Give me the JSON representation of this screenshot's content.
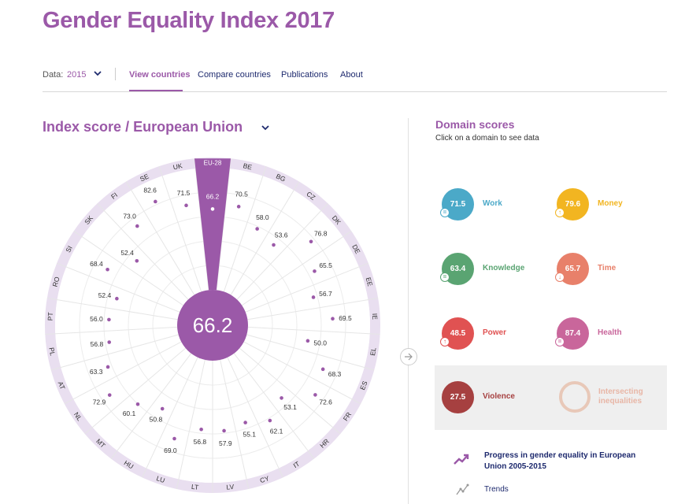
{
  "header": {
    "title": "Gender Equality Index 2017"
  },
  "nav": {
    "data_label": "Data:",
    "data_value": "2015",
    "links": [
      "View countries",
      "Compare countries",
      "Publications",
      "About"
    ]
  },
  "index": {
    "label": "Index score",
    "separator": "/",
    "region": "European Union"
  },
  "chart_data": {
    "type": "radial-bar",
    "title": "Index score / European Union",
    "highlight": "EU-28",
    "center_value": "66.2",
    "categories": [
      "EU-28",
      "BE",
      "BG",
      "CZ",
      "DK",
      "DE",
      "EE",
      "IE",
      "EL",
      "ES",
      "FR",
      "HR",
      "IT",
      "CY",
      "LV",
      "LT",
      "LU",
      "HU",
      "MT",
      "NL",
      "AT",
      "PL",
      "PT",
      "RO",
      "SI",
      "SK",
      "FI",
      "SE",
      "UK"
    ],
    "values": [
      "66.2",
      "70.5",
      "58.0",
      "53.6",
      "76.8",
      "65.5",
      "56.7",
      "69.5",
      "50.0",
      "68.3",
      "72.6",
      "53.1",
      "62.1",
      "55.1",
      "57.9",
      "56.8",
      "69.0",
      "50.8",
      "60.1",
      "72.9",
      "63.3",
      "56.8",
      "56.0",
      "52.4",
      "68.4",
      "52.4",
      "73.0",
      "82.6",
      "71.5"
    ],
    "ylim": [
      0,
      100
    ]
  },
  "domains": {
    "title": "Domain scores",
    "subtitle": "Click on a domain to see data",
    "items": [
      {
        "label": "Work",
        "score": "71.5",
        "color": "#4ba9c8",
        "trend": "="
      },
      {
        "label": "Money",
        "score": "79.6",
        "color": "#f2b521",
        "trend": "↑"
      },
      {
        "label": "Knowledge",
        "score": "63.4",
        "color": "#5aa472",
        "trend": "="
      },
      {
        "label": "Time",
        "score": "65.7",
        "color": "#e8806a",
        "trend": "↓"
      },
      {
        "label": "Power",
        "score": "48.5",
        "color": "#e05252",
        "trend": "↑"
      },
      {
        "label": "Health",
        "score": "87.4",
        "color": "#c9669b",
        "trend": "="
      },
      {
        "label": "Violence",
        "score": "27.5",
        "color": "#a64040",
        "trend": ""
      },
      {
        "label": "Intersecting inequalities",
        "score": "",
        "color": "#e8b6a6",
        "trend": ""
      }
    ]
  },
  "links": {
    "progress": "Progress in gender equality in European Union 2005-2015",
    "trends": "Trends"
  }
}
